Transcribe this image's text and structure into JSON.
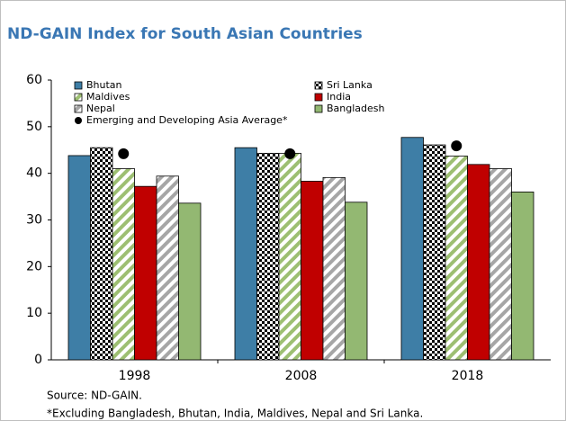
{
  "chart_data": {
    "type": "bar",
    "title": "ND-GAIN Index for South Asian Countries",
    "categories": [
      "1998",
      "2008",
      "2018"
    ],
    "series": [
      {
        "name": "Bhutan",
        "color": "#3e7ea6",
        "pattern": "solid",
        "values": [
          43.8,
          45.5,
          47.7
        ]
      },
      {
        "name": "Sri Lanka",
        "color": "#000000",
        "pattern": "checker",
        "values": [
          45.5,
          44.3,
          46.1
        ]
      },
      {
        "name": "Maldives",
        "color": "#9dbf72",
        "pattern": "stripe",
        "values": [
          41.0,
          44.3,
          43.7
        ]
      },
      {
        "name": "India",
        "color": "#c00000",
        "pattern": "solid",
        "values": [
          37.2,
          38.3,
          41.9
        ]
      },
      {
        "name": "Nepal",
        "color": "#a6a6a6",
        "pattern": "stripe",
        "values": [
          39.4,
          39.1,
          41.0
        ]
      },
      {
        "name": "Bangladesh",
        "color": "#93b872",
        "pattern": "solid",
        "values": [
          33.6,
          33.8,
          36.0
        ]
      }
    ],
    "markers": {
      "name": "Emerging and Developing Asia Average*",
      "color": "#000000",
      "values": [
        44.2,
        44.2,
        45.9
      ]
    },
    "ylim": [
      0,
      60
    ],
    "yticks": [
      0,
      10,
      20,
      30,
      40,
      50,
      60
    ],
    "notes": [
      "Source: ND-GAIN.",
      "*Excluding Bangladesh, Bhutan, India, Maldives, Nepal and Sri Lanka."
    ]
  }
}
